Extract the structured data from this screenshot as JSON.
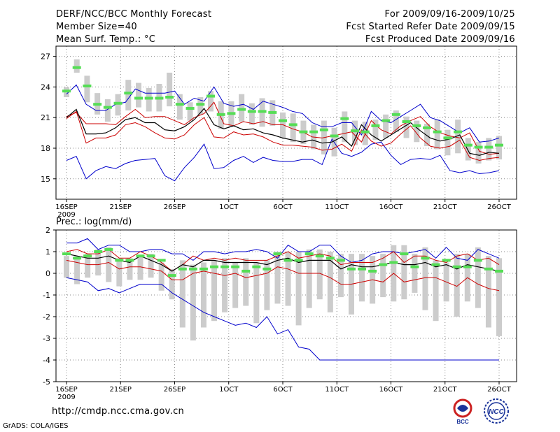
{
  "header": {
    "title": "DERF/NCC/BCC Monthly Forecast",
    "member_size": "Member Size=40",
    "variable": "Mean Surf. Temp.: °C",
    "period": "For 2009/09/16-2009/10/25",
    "start_ref": "Fcst Started Refer Date 2009/09/15",
    "produced": "Fcst Produced Date 2009/09/16"
  },
  "footer": {
    "url": "http://cmdp.ncc.cma.gov.cn",
    "credit": "GrADS: COLA/IGES",
    "logo_bcc": "BCC",
    "logo_ncc": "NCC"
  },
  "colors": {
    "max_min": "#0000cc",
    "spread": "#cc0000",
    "mean": "#000000",
    "member": "#55dd55",
    "box": "#cccccc"
  },
  "chart_data": [
    {
      "type": "line",
      "title": "Mean Surf. Temp.: °C",
      "x_days": 40,
      "xticks": [
        {
          "day": 0,
          "label": "16SEP",
          "sub": "2009"
        },
        {
          "day": 5,
          "label": "21SEP"
        },
        {
          "day": 10,
          "label": "26SEP"
        },
        {
          "day": 15,
          "label": "1OCT"
        },
        {
          "day": 20,
          "label": "6OCT"
        },
        {
          "day": 25,
          "label": "11OCT"
        },
        {
          "day": 30,
          "label": "16OCT"
        },
        {
          "day": 35,
          "label": "21OCT"
        },
        {
          "day": 40,
          "label": "26OCT"
        }
      ],
      "ylim": [
        13,
        28
      ],
      "yticks": [
        15,
        18,
        21,
        24,
        27
      ],
      "series": [
        {
          "name": "max",
          "values": [
            23.3,
            24.2,
            22.3,
            21.7,
            21.7,
            22.3,
            22.5,
            23.8,
            23.4,
            23.4,
            23.4,
            23.6,
            22.3,
            22.9,
            22.6,
            24.0,
            22.4,
            22.1,
            22.3,
            21.8,
            22.6,
            22.3,
            22.0,
            21.6,
            21.4,
            20.5,
            20.1,
            20.1,
            20.5,
            20.5,
            19.3,
            21.6,
            20.7,
            20.5,
            21.1,
            21.7,
            22.3,
            21.0,
            20.7,
            20.1,
            19.5,
            20.0,
            18.6,
            18.7,
            19.0
          ]
        },
        {
          "name": "spread_upper",
          "values": [
            21.1,
            21.5,
            20.4,
            20.4,
            20.4,
            20.3,
            21.1,
            21.8,
            21.0,
            21.1,
            21.1,
            20.7,
            20.3,
            21.0,
            21.4,
            22.5,
            20.4,
            20.2,
            20.6,
            20.4,
            20.6,
            20.3,
            20.3,
            19.9,
            19.6,
            19.1,
            19.0,
            19.2,
            19.4,
            19.6,
            18.6,
            20.7,
            19.8,
            19.4,
            20.2,
            20.7,
            21.1,
            20.1,
            19.5,
            19.2,
            19.0,
            19.5,
            17.7,
            17.4,
            17.5
          ]
        },
        {
          "name": "mean",
          "values": [
            21.0,
            21.8,
            19.4,
            19.4,
            19.5,
            20.0,
            20.8,
            21.0,
            20.5,
            20.5,
            19.8,
            19.7,
            20.1,
            20.8,
            21.9,
            20.3,
            19.9,
            20.2,
            19.8,
            19.9,
            19.5,
            19.3,
            19.0,
            18.8,
            18.6,
            18.8,
            18.5,
            18.6,
            19.1,
            18.2,
            20.3,
            19.3,
            18.7,
            19.3,
            19.9,
            20.5,
            19.7,
            19.0,
            18.7,
            18.9,
            19.3,
            17.5,
            17.3,
            17.6,
            17.5
          ]
        },
        {
          "name": "spread_lower",
          "values": [
            20.9,
            21.6,
            18.5,
            19.0,
            19.0,
            19.3,
            20.3,
            20.5,
            20.1,
            19.5,
            19.0,
            18.9,
            19.3,
            20.3,
            21.0,
            19.1,
            19.0,
            19.6,
            19.3,
            19.4,
            19.1,
            18.6,
            18.3,
            18.3,
            18.2,
            18.1,
            17.8,
            17.9,
            18.4,
            17.7,
            19.8,
            18.7,
            18.2,
            18.5,
            19.4,
            20.2,
            19.0,
            18.2,
            18.0,
            18.2,
            18.8,
            17.1,
            16.8,
            17.0,
            17.1
          ]
        },
        {
          "name": "min",
          "values": [
            16.8,
            17.2,
            15.0,
            15.8,
            16.2,
            16.0,
            16.5,
            16.8,
            16.9,
            17.0,
            15.3,
            14.8,
            16.1,
            17.1,
            18.4,
            16.0,
            16.1,
            16.8,
            17.2,
            16.6,
            17.1,
            16.8,
            16.7,
            16.7,
            16.9,
            16.9,
            16.4,
            18.9,
            17.5,
            17.2,
            17.6,
            18.4,
            18.6,
            17.3,
            16.4,
            16.9,
            17.0,
            16.9,
            17.3,
            15.8,
            15.6,
            15.8,
            15.5,
            15.6,
            15.8
          ]
        },
        {
          "name": "members_median",
          "values": [
            23.6,
            25.9,
            24.1,
            22.3,
            22.0,
            22.4,
            23.4,
            22.9,
            22.9,
            22.9,
            23.0,
            22.3,
            21.9,
            22.3,
            23.1,
            21.3,
            21.4,
            21.8,
            21.6,
            21.6,
            21.5,
            20.7,
            20.3,
            19.6,
            19.6,
            19.8,
            19.2,
            20.9,
            19.7,
            19.6,
            20.2,
            20.7,
            21.3,
            20.6,
            20.2,
            20.0,
            19.6,
            19.0,
            19.6,
            18.3,
            18.1,
            18.1,
            18.3
          ]
        },
        {
          "name": "box_top",
          "values": [
            24.0,
            26.7,
            25.1,
            23.4,
            22.8,
            23.3,
            24.7,
            24.4,
            23.9,
            24.3,
            25.4,
            23.3,
            22.5,
            23.0,
            23.6,
            22.6,
            22.6,
            23.3,
            22.4,
            22.9,
            22.7,
            21.5,
            21.4,
            20.7,
            20.3,
            20.7,
            20.0,
            21.6,
            20.7,
            20.6,
            20.8,
            21.3,
            21.7,
            21.1,
            20.7,
            20.4,
            20.8,
            19.8,
            20.8,
            19.0,
            18.6,
            19.0,
            19.2
          ]
        },
        {
          "name": "box_bottom",
          "values": [
            23.0,
            25.4,
            22.5,
            21.3,
            20.6,
            21.2,
            21.7,
            22.0,
            21.6,
            21.6,
            22.1,
            20.8,
            20.7,
            21.3,
            21.6,
            19.9,
            20.1,
            20.6,
            20.3,
            20.1,
            20.2,
            19.0,
            18.6,
            18.4,
            17.9,
            17.4,
            17.2,
            18.6,
            18.3,
            18.3,
            18.8,
            19.0,
            19.6,
            19.0,
            18.6,
            18.2,
            17.9,
            17.3,
            17.5,
            16.8,
            16.5,
            16.8,
            16.9
          ]
        }
      ]
    },
    {
      "type": "line",
      "title": "Prec.: log(mm/d)",
      "x_days": 40,
      "xticks": [
        {
          "day": 0,
          "label": "16SEP",
          "sub": "2009"
        },
        {
          "day": 5,
          "label": "21SEP"
        },
        {
          "day": 10,
          "label": "26SEP"
        },
        {
          "day": 15,
          "label": "1OCT"
        },
        {
          "day": 20,
          "label": "6OCT"
        },
        {
          "day": 25,
          "label": "11OCT"
        },
        {
          "day": 30,
          "label": "16OCT"
        },
        {
          "day": 35,
          "label": "21OCT"
        },
        {
          "day": 40,
          "label": "26OCT"
        }
      ],
      "ylim": [
        -5,
        2
      ],
      "yticks": [
        -5,
        -4,
        -3,
        -2,
        -1,
        0,
        1,
        2
      ],
      "series": [
        {
          "name": "max",
          "values": [
            1.4,
            1.4,
            1.6,
            1.1,
            1.3,
            1.3,
            1.0,
            1.0,
            1.1,
            1.1,
            0.9,
            0.9,
            0.6,
            1.0,
            1.0,
            0.9,
            1.0,
            1.0,
            1.1,
            1.0,
            0.7,
            1.3,
            1.0,
            1.0,
            1.3,
            1.3,
            0.8,
            0.5,
            0.6,
            0.9,
            1.0,
            1.0,
            0.9,
            1.0,
            1.1,
            0.7,
            1.2,
            0.7,
            0.6,
            1.1,
            0.9,
            0.7
          ]
        },
        {
          "name": "spread_upper",
          "values": [
            1.0,
            1.1,
            0.9,
            0.9,
            1.1,
            0.7,
            0.7,
            1.0,
            0.8,
            0.5,
            0.1,
            0.4,
            0.8,
            0.6,
            0.7,
            0.6,
            0.7,
            0.6,
            0.6,
            0.6,
            0.8,
            1.0,
            0.7,
            0.8,
            0.9,
            0.8,
            0.4,
            0.5,
            0.5,
            0.5,
            0.7,
            1.0,
            0.5,
            0.8,
            0.8,
            0.6,
            0.5,
            0.8,
            0.9,
            0.6,
            0.7,
            0.4
          ]
        },
        {
          "name": "mean",
          "values": [
            0.9,
            0.8,
            0.7,
            0.7,
            0.8,
            0.6,
            0.5,
            0.8,
            0.6,
            0.4,
            0.1,
            0.4,
            0.3,
            0.6,
            0.6,
            0.5,
            0.5,
            0.5,
            0.5,
            0.4,
            0.6,
            0.7,
            0.5,
            0.6,
            0.6,
            0.6,
            0.2,
            0.4,
            0.3,
            0.3,
            0.4,
            0.5,
            0.4,
            0.4,
            0.5,
            0.3,
            0.4,
            0.2,
            0.4,
            0.3,
            0.2,
            0.1
          ]
        },
        {
          "name": "spread_lower",
          "values": [
            0.6,
            0.5,
            0.4,
            0.4,
            0.5,
            0.2,
            0.3,
            0.3,
            0.2,
            0.1,
            -0.3,
            -0.3,
            0.0,
            0.1,
            0.0,
            -0.1,
            0.0,
            -0.2,
            -0.1,
            0.0,
            0.3,
            0.2,
            0.0,
            0.0,
            0.0,
            -0.2,
            -0.5,
            -0.5,
            -0.4,
            -0.3,
            -0.4,
            0.0,
            -0.4,
            -0.3,
            -0.2,
            -0.2,
            -0.4,
            -0.6,
            -0.2,
            -0.5,
            -0.7,
            -0.8
          ]
        },
        {
          "name": "min",
          "values": [
            -0.2,
            -0.3,
            -0.4,
            -0.8,
            -0.7,
            -0.9,
            -0.7,
            -0.5,
            -0.5,
            -0.5,
            -0.9,
            -1.2,
            -1.5,
            -1.8,
            -2.0,
            -2.2,
            -2.4,
            -2.3,
            -2.5,
            -2.0,
            -2.8,
            -2.6,
            -3.4,
            -3.5,
            -4.0,
            -4.0,
            -4.0,
            -4.0,
            -4.0,
            -4.0,
            -4.0,
            -4.0,
            -4.0,
            -4.0,
            -4.0,
            -4.0,
            -4.0,
            -4.0,
            -4.0,
            -4.0,
            -4.0,
            -4.0
          ]
        },
        {
          "name": "members_median",
          "values": [
            0.9,
            0.7,
            0.8,
            1.0,
            1.1,
            0.6,
            0.6,
            0.8,
            0.8,
            0.6,
            -0.1,
            0.2,
            0.2,
            0.2,
            0.3,
            0.3,
            0.3,
            0.1,
            0.3,
            0.2,
            0.9,
            0.6,
            0.6,
            0.9,
            0.8,
            0.7,
            0.6,
            0.2,
            0.2,
            0.1,
            0.4,
            0.5,
            0.9,
            0.3,
            0.7,
            0.4,
            0.6,
            0.3,
            0.3,
            0.6,
            0.2,
            0.1
          ]
        },
        {
          "name": "box_top",
          "values": [
            0.8,
            0.8,
            0.9,
            1.1,
            1.2,
            0.7,
            0.7,
            0.8,
            0.9,
            0.5,
            0.2,
            0.6,
            0.4,
            0.5,
            0.6,
            0.7,
            0.5,
            0.7,
            0.5,
            0.6,
            1.0,
            1.0,
            1.0,
            1.1,
            1.1,
            1.0,
            0.9,
            0.9,
            0.9,
            0.8,
            0.9,
            1.3,
            1.3,
            0.9,
            1.2,
            0.6,
            0.5,
            0.9,
            0.9,
            1.2,
            0.8,
            0.7
          ]
        },
        {
          "name": "box_bottom",
          "values": [
            -0.2,
            -0.5,
            -0.2,
            -0.1,
            -0.4,
            -0.6,
            -0.3,
            -0.3,
            -0.2,
            -0.8,
            -1.2,
            -2.5,
            -3.1,
            -2.5,
            -2.2,
            -1.8,
            -1.6,
            -1.5,
            -2.3,
            -1.7,
            -1.4,
            -1.5,
            -2.4,
            -1.6,
            -1.2,
            -1.8,
            -1.1,
            -1.9,
            -1.3,
            -1.4,
            -1.1,
            -1.3,
            -1.2,
            -0.9,
            -1.7,
            -2.2,
            -1.3,
            -2.0,
            -1.3,
            -1.6,
            -2.5,
            -2.9
          ]
        }
      ]
    }
  ]
}
